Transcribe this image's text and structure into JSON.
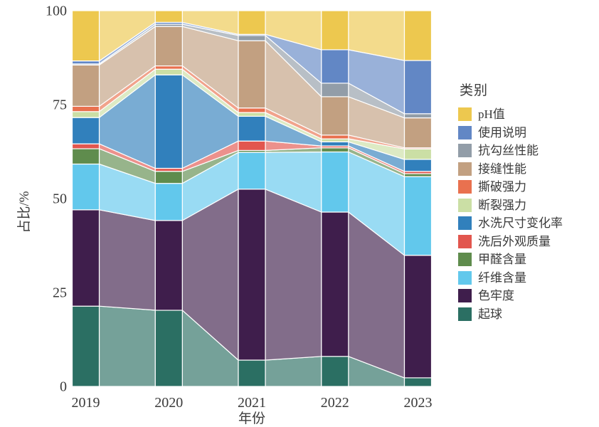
{
  "chart_data": {
    "type": "area",
    "variant": "percent-stacked-area-with-year-bars",
    "title": "",
    "xlabel": "年份",
    "ylabel": "占比/%",
    "legend_title": "类别",
    "x": [
      2019,
      2020,
      2021,
      2022,
      2023
    ],
    "y_ticks": [
      0,
      25,
      50,
      75,
      100
    ],
    "ylim": [
      0,
      100
    ],
    "grid": false,
    "legend_position": "right",
    "legend_order_top_to_bottom": [
      "pH值",
      "使用说明",
      "抗勾丝性能",
      "接缝性能",
      "撕破强力",
      "断裂强力",
      "水洗尺寸变化率",
      "洗后外观质量",
      "甲醛含量",
      "纤维含量",
      "色牢度",
      "起球"
    ],
    "series_bottom_to_top": [
      {
        "name": "起球",
        "color": "#2B6F63",
        "values": [
          21.4,
          20.3,
          7.0,
          8.0,
          2.3
        ]
      },
      {
        "name": "色牢度",
        "color": "#3F1E4C",
        "values": [
          25.7,
          23.9,
          45.5,
          38.4,
          32.7
        ]
      },
      {
        "name": "纤维含量",
        "color": "#62C8EC",
        "values": [
          12.2,
          9.9,
          9.8,
          16.0,
          21.0
        ]
      },
      {
        "name": "甲醛含量",
        "color": "#5F8C4D",
        "values": [
          4.1,
          3.2,
          0.5,
          1.1,
          0.8
        ]
      },
      {
        "name": "洗后外观质量",
        "color": "#E2564E",
        "values": [
          1.3,
          0.8,
          2.5,
          0.5,
          0.6
        ]
      },
      {
        "name": "水洗尺寸变化率",
        "color": "#3180BC",
        "values": [
          7.0,
          24.9,
          6.6,
          1.1,
          3.2
        ]
      },
      {
        "name": "断裂强力",
        "color": "#CBDFA5",
        "values": [
          1.6,
          1.5,
          1.0,
          0.8,
          2.8
        ]
      },
      {
        "name": "撕破强力",
        "color": "#E9714F",
        "values": [
          1.4,
          0.9,
          1.2,
          1.0,
          0.3
        ]
      },
      {
        "name": "接缝性能",
        "color": "#C2A081",
        "values": [
          11.0,
          10.5,
          17.9,
          10.2,
          8.0
        ]
      },
      {
        "name": "抗勾丝性能",
        "color": "#929DA8",
        "values": [
          0.3,
          0.6,
          1.4,
          3.6,
          1.1
        ]
      },
      {
        "name": "使用说明",
        "color": "#6287C5",
        "values": [
          0.8,
          0.5,
          0.3,
          8.9,
          14.2
        ]
      },
      {
        "name": "pH值",
        "color": "#EDC84F",
        "values": [
          13.4,
          3.1,
          6.3,
          10.4,
          13.3
        ]
      }
    ]
  }
}
